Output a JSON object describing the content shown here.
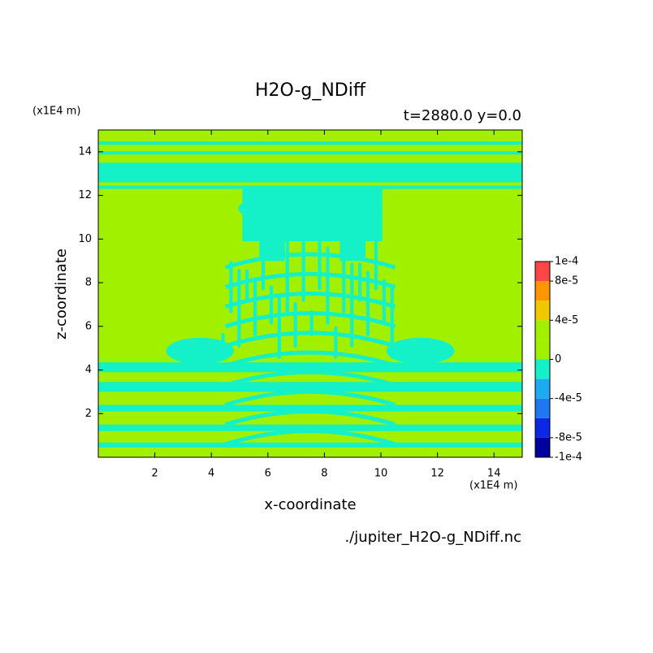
{
  "chart_data": {
    "type": "contour",
    "title": "H2O-g_NDiff",
    "subtitle": "t=2880.0 y=0.0",
    "x_label": "x-coordinate",
    "y_label": "z-coordinate",
    "x_unit": "(x1E4 m)",
    "y_unit": "(x1E4 m)",
    "source": "./jupiter_H2O-g_NDiff.nc",
    "xlim": [
      0,
      15
    ],
    "ylim": [
      0,
      15
    ],
    "xticks": [
      2,
      4,
      6,
      8,
      10,
      12,
      14
    ],
    "yticks": [
      2,
      4,
      6,
      8,
      10,
      12,
      14
    ],
    "levels": [
      -0.0001,
      -8e-05,
      -6e-05,
      -4e-05,
      -2e-05,
      0,
      2e-05,
      4e-05,
      6e-05,
      8e-05,
      0.0001
    ],
    "colors": [
      "#0000a0",
      "#0a28e6",
      "#1e78f0",
      "#1eaaf0",
      "#14f0c8",
      "#a0f000",
      "#a0f000",
      "#f0c800",
      "#ff9600",
      "#ff4646"
    ],
    "cbticks": [
      {
        "value": 0.0001,
        "label": "1e-4"
      },
      {
        "value": 8e-05,
        "label": "8e-5"
      },
      {
        "value": 4e-05,
        "label": "4e-5"
      },
      0,
      {
        "value": -4e-05,
        "label": "-4e-5"
      },
      {
        "value": -8e-05,
        "label": "-8e-5"
      },
      {
        "value": -0.0001,
        "label": "-1e-4"
      }
    ]
  }
}
